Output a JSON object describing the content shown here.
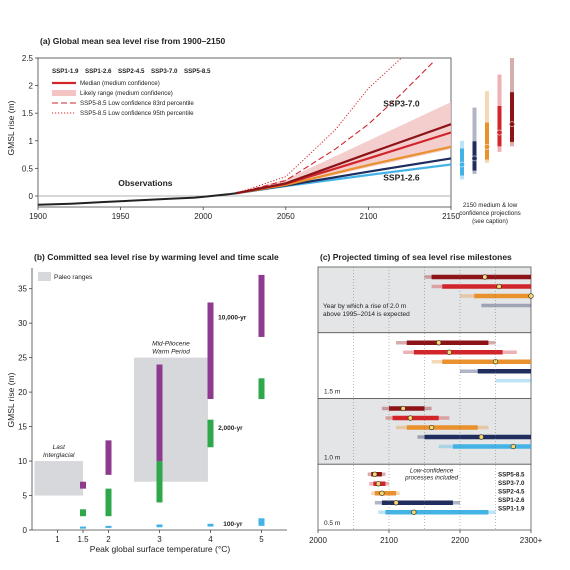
{
  "colors": {
    "ssp119": "#43b3e6",
    "ssp126": "#1f2e5e",
    "ssp245": "#e8912d",
    "ssp370": "#d1252b",
    "ssp585": "#8c1418",
    "obs": "#222222",
    "likely": "#f2c4c4",
    "paleo": "#d6d8db",
    "green": "#2ea84a",
    "purple": "#8e3a8e"
  },
  "panel_a": {
    "chart_data": {
      "type": "line",
      "title": "(a) Global mean sea level rise from 1900–2150",
      "ylabel": "GMSL rise (m)",
      "xlim": [
        1900,
        2150
      ],
      "ylim": [
        -0.2,
        2.5
      ],
      "xticks": [
        "1900",
        "1950",
        "2000",
        "2050",
        "2100",
        "2150"
      ],
      "yticks": [
        "0",
        "0.5",
        "1",
        "1.5",
        "2",
        "2.5"
      ],
      "legend_ssp": [
        {
          "key": "ssp119",
          "label": "SSP1-1.9"
        },
        {
          "key": "ssp126",
          "label": "SSP1-2.6"
        },
        {
          "key": "ssp245",
          "label": "SSP2-4.5"
        },
        {
          "key": "ssp370",
          "label": "SSP3-7.0"
        },
        {
          "key": "ssp585",
          "label": "SSP5-8.5"
        }
      ],
      "legend_items": [
        {
          "style": "median",
          "text": "Median (medium confidence)"
        },
        {
          "style": "likely",
          "text": "Likely range (medium confidence)"
        },
        {
          "style": "dashed",
          "text": "SSP5-8.5 Low confidence 83rd percentile"
        },
        {
          "style": "dotted",
          "text": "SSP5-8.5 Low confidence 95th percentile"
        }
      ],
      "annotations": {
        "observations": "Observations",
        "ssp370": "SSP3-7.0",
        "ssp126": "SSP1-2.6",
        "right_caption": [
          "2150 medium & low",
          "confidence projections",
          "(see caption)"
        ]
      },
      "observations": {
        "x": [
          1900,
          1920,
          1940,
          1960,
          1980,
          1995,
          2005,
          2015,
          2020
        ],
        "y": [
          -0.16,
          -0.14,
          -0.11,
          -0.08,
          -0.05,
          -0.03,
          0.0,
          0.03,
          0.05
        ]
      },
      "series": [
        {
          "key": "ssp119",
          "x": [
            2020,
            2050,
            2100,
            2150
          ],
          "y": [
            0.05,
            0.18,
            0.38,
            0.57
          ]
        },
        {
          "key": "ssp126",
          "x": [
            2020,
            2050,
            2100,
            2150
          ],
          "y": [
            0.05,
            0.19,
            0.44,
            0.68
          ]
        },
        {
          "key": "ssp245",
          "x": [
            2020,
            2050,
            2100,
            2150
          ],
          "y": [
            0.05,
            0.2,
            0.56,
            0.89
          ]
        },
        {
          "key": "ssp370",
          "x": [
            2020,
            2050,
            2100,
            2150
          ],
          "y": [
            0.05,
            0.22,
            0.68,
            1.15
          ]
        },
        {
          "key": "ssp585",
          "x": [
            2020,
            2050,
            2100,
            2150
          ],
          "y": [
            0.05,
            0.23,
            0.77,
            1.3
          ]
        }
      ],
      "likely_range": {
        "x": [
          2020,
          2050,
          2100,
          2150
        ],
        "low": [
          0.05,
          0.17,
          0.52,
          0.85
        ],
        "high": [
          0.05,
          0.3,
          1.0,
          1.7
        ]
      },
      "ssp585_83rd": {
        "x": [
          2020,
          2050,
          2080,
          2100,
          2120,
          2140
        ],
        "y": [
          0.05,
          0.28,
          0.85,
          1.3,
          1.85,
          2.45
        ]
      },
      "ssp585_95th": {
        "x": [
          2020,
          2050,
          2080,
          2100,
          2120
        ],
        "y": [
          0.05,
          0.35,
          1.2,
          1.95,
          2.6
        ]
      },
      "range_bars": [
        {
          "key": "ssp119",
          "median": 0.57,
          "likely": [
            0.37,
            0.86
          ],
          "low_conf": [
            0.3,
            1.0
          ]
        },
        {
          "key": "ssp126",
          "median": 0.68,
          "likely": [
            0.46,
            0.99
          ],
          "low_conf": [
            0.4,
            1.6
          ]
        },
        {
          "key": "ssp245",
          "median": 0.89,
          "likely": [
            0.66,
            1.33
          ],
          "low_conf": [
            0.6,
            1.9
          ]
        },
        {
          "key": "ssp370",
          "median": 1.15,
          "likely": [
            0.9,
            1.63
          ],
          "low_conf": [
            0.8,
            2.2
          ]
        },
        {
          "key": "ssp585",
          "median": 1.3,
          "likely": [
            0.98,
            1.88
          ],
          "low_conf": [
            0.9,
            2.5
          ]
        }
      ]
    }
  },
  "panel_b": {
    "chart_data": {
      "type": "bar",
      "title": "(b) Committed sea level rise by warming level and time scale",
      "xlabel": "Peak global surface temperature (°C)",
      "ylabel": "GMSL rise (m)",
      "xlim": [
        0.5,
        5.5
      ],
      "ylim": [
        0,
        38
      ],
      "xticks": [
        "1",
        "1.5",
        "2",
        "3",
        "4",
        "5"
      ],
      "yticks": [
        "0",
        "5",
        "10",
        "15",
        "20",
        "25",
        "30",
        "35"
      ],
      "legend": "Paleo ranges",
      "paleo": [
        {
          "label": [
            "Last",
            "Interglacial"
          ],
          "x": [
            0.55,
            1.5
          ],
          "y": [
            5,
            10
          ]
        },
        {
          "label": [
            "Mid-Pliocene",
            "Warm Period"
          ],
          "x": [
            2.5,
            3.95
          ],
          "y": [
            7,
            25
          ]
        }
      ],
      "timescale_labels": [
        {
          "text": "10,000-yr",
          "color": "purple",
          "x": 4.15,
          "y": 30.5
        },
        {
          "text": "2,000-yr",
          "color": "green",
          "x": 4.15,
          "y": 14.5
        },
        {
          "text": "100-yr",
          "color": "ssp119",
          "x": 4.25,
          "y": 0.6
        }
      ],
      "bars": [
        {
          "series": "100-yr",
          "x": 1.5,
          "range": [
            0.2,
            0.5
          ]
        },
        {
          "series": "2,000-yr",
          "x": 1.5,
          "range": [
            2,
            3
          ]
        },
        {
          "series": "10,000-yr",
          "x": 1.5,
          "range": [
            6,
            7
          ]
        },
        {
          "series": "100-yr",
          "x": 2,
          "range": [
            0.3,
            0.6
          ]
        },
        {
          "series": "2,000-yr",
          "x": 2,
          "range": [
            2,
            6
          ]
        },
        {
          "series": "10,000-yr",
          "x": 2,
          "range": [
            8,
            13
          ]
        },
        {
          "series": "100-yr",
          "x": 3,
          "range": [
            0.4,
            0.8
          ]
        },
        {
          "series": "2,000-yr",
          "x": 3,
          "range": [
            4,
            10
          ]
        },
        {
          "series": "10,000-yr",
          "x": 3,
          "range": [
            10,
            24
          ]
        },
        {
          "series": "100-yr",
          "x": 4,
          "range": [
            0.5,
            0.9
          ]
        },
        {
          "series": "2,000-yr",
          "x": 4,
          "range": [
            12,
            16
          ]
        },
        {
          "series": "10,000-yr",
          "x": 4,
          "range": [
            19,
            33
          ]
        },
        {
          "series": "100-yr",
          "x": 5,
          "range": [
            0.6,
            1.7
          ]
        },
        {
          "series": "2,000-yr",
          "x": 5,
          "range": [
            19,
            22
          ]
        },
        {
          "series": "10,000-yr",
          "x": 5,
          "range": [
            28,
            37
          ]
        }
      ]
    }
  },
  "panel_c": {
    "chart_data": {
      "type": "bar",
      "title": "(c) Projected timing of sea level rise milestones",
      "xlim": [
        2000,
        2300
      ],
      "xticks": [
        "2000",
        "2100",
        "2200",
        "2300+"
      ],
      "note": [
        "Year by which a rise of 2.0 m",
        "above 1995–2014 is expected"
      ],
      "low_conf_note": [
        "Low-confidence",
        "processes included"
      ],
      "legend": [
        {
          "key": "ssp585",
          "label": "SSP5-8.5"
        },
        {
          "key": "ssp370",
          "label": "SSP3-7.0"
        },
        {
          "key": "ssp245",
          "label": "SSP2-4.5"
        },
        {
          "key": "ssp126",
          "label": "SSP1-2.6"
        },
        {
          "key": "ssp119",
          "label": "SSP1-1.9"
        }
      ],
      "groups": [
        {
          "label": "",
          "shaded": true,
          "rows": [
            {
              "key": "ssp585",
              "med": 2235,
              "likely": [
                2160,
                2300
              ],
              "lc": [
                2150,
                2300
              ],
              "marker": 2235
            },
            {
              "key": "ssp370",
              "med": 2255,
              "likely": [
                2175,
                2300
              ],
              "lc": [
                2160,
                2300
              ],
              "marker": 2255
            },
            {
              "key": "ssp245",
              "med": 2300,
              "likely": [
                2220,
                2300
              ],
              "lc": [
                2200,
                2300
              ],
              "marker": 2300
            },
            {
              "key": "ssp126",
              "med": 2300,
              "likely": [
                2300,
                2300
              ],
              "lc": [
                2230,
                2300
              ],
              "marker": null
            }
          ]
        },
        {
          "label": "1.5 m",
          "shaded": false,
          "rows": [
            {
              "key": "ssp585",
              "med": 2170,
              "likely": [
                2125,
                2240
              ],
              "lc": [
                2110,
                2250
              ],
              "marker": 2170
            },
            {
              "key": "ssp370",
              "med": 2185,
              "likely": [
                2135,
                2260
              ],
              "lc": [
                2120,
                2280
              ],
              "marker": 2185
            },
            {
              "key": "ssp245",
              "med": 2250,
              "likely": [
                2175,
                2300
              ],
              "lc": [
                2160,
                2300
              ],
              "marker": 2250
            },
            {
              "key": "ssp126",
              "med": 2300,
              "likely": [
                2225,
                2300
              ],
              "lc": [
                2200,
                2300
              ],
              "marker": null
            },
            {
              "key": "ssp119",
              "med": 2300,
              "likely": [
                2300,
                2300
              ],
              "lc": [
                2250,
                2300
              ],
              "marker": null
            }
          ]
        },
        {
          "label": "1.0 m",
          "shaded": true,
          "rows": [
            {
              "key": "ssp585",
              "med": 2120,
              "likely": [
                2100,
                2150
              ],
              "lc": [
                2090,
                2160
              ],
              "marker": 2120
            },
            {
              "key": "ssp370",
              "med": 2130,
              "likely": [
                2105,
                2170
              ],
              "lc": [
                2095,
                2185
              ],
              "marker": 2130
            },
            {
              "key": "ssp245",
              "med": 2160,
              "likely": [
                2125,
                2225
              ],
              "lc": [
                2110,
                2240
              ],
              "marker": 2160
            },
            {
              "key": "ssp126",
              "med": 2230,
              "likely": [
                2150,
                2300
              ],
              "lc": [
                2140,
                2300
              ],
              "marker": 2230
            },
            {
              "key": "ssp119",
              "med": 2275,
              "likely": [
                2190,
                2300
              ],
              "lc": [
                2170,
                2300
              ],
              "marker": 2275
            }
          ]
        },
        {
          "label": "0.5 m",
          "shaded": false,
          "rows": [
            {
              "key": "ssp585",
              "med": 2080,
              "likely": [
                2075,
                2090
              ],
              "lc": [
                2070,
                2095
              ],
              "marker": 2080
            },
            {
              "key": "ssp370",
              "med": 2085,
              "likely": [
                2078,
                2095
              ],
              "lc": [
                2072,
                2100
              ],
              "marker": 2085
            },
            {
              "key": "ssp245",
              "med": 2090,
              "likely": [
                2080,
                2110
              ],
              "lc": [
                2075,
                2115
              ],
              "marker": 2090
            },
            {
              "key": "ssp126",
              "med": 2110,
              "likely": [
                2090,
                2190
              ],
              "lc": [
                2080,
                2200
              ],
              "marker": 2110
            },
            {
              "key": "ssp119",
              "med": 2135,
              "likely": [
                2095,
                2240
              ],
              "lc": [
                2085,
                2250
              ],
              "marker": 2135
            }
          ]
        }
      ]
    }
  }
}
